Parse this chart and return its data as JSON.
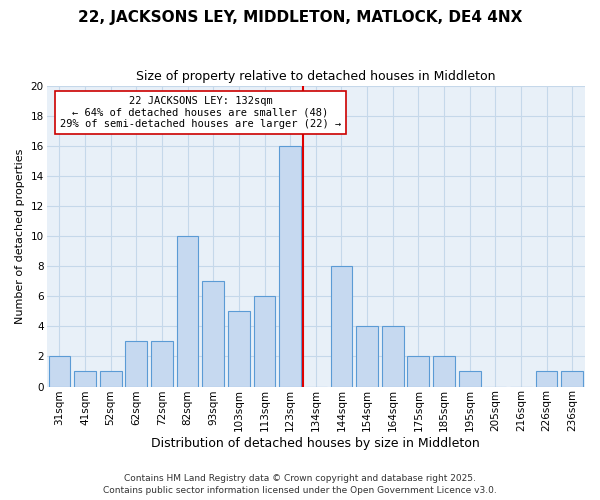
{
  "title": "22, JACKSONS LEY, MIDDLETON, MATLOCK, DE4 4NX",
  "subtitle": "Size of property relative to detached houses in Middleton",
  "xlabel": "Distribution of detached houses by size in Middleton",
  "ylabel": "Number of detached properties",
  "bar_labels": [
    "31sqm",
    "41sqm",
    "52sqm",
    "62sqm",
    "72sqm",
    "82sqm",
    "93sqm",
    "103sqm",
    "113sqm",
    "123sqm",
    "134sqm",
    "144sqm",
    "154sqm",
    "164sqm",
    "175sqm",
    "185sqm",
    "195sqm",
    "205sqm",
    "216sqm",
    "226sqm",
    "236sqm"
  ],
  "bar_values": [
    2,
    1,
    1,
    3,
    3,
    10,
    7,
    5,
    6,
    16,
    0,
    8,
    4,
    4,
    2,
    2,
    1,
    0,
    0,
    1,
    1
  ],
  "bar_color": "#c6d9f0",
  "bar_edgecolor": "#5b9bd5",
  "vline_color": "#dd0000",
  "annotation_title": "22 JACKSONS LEY: 132sqm",
  "annotation_line1": "← 64% of detached houses are smaller (48)",
  "annotation_line2": "29% of semi-detached houses are larger (22) →",
  "annotation_box_edgecolor": "#cc0000",
  "annotation_box_facecolor": "#ffffff",
  "ylim": [
    0,
    20
  ],
  "yticks": [
    0,
    2,
    4,
    6,
    8,
    10,
    12,
    14,
    16,
    18,
    20
  ],
  "background_color": "#ffffff",
  "plot_bg_color": "#e8f0f8",
  "grid_color": "#c5d8ea",
  "footer_line1": "Contains HM Land Registry data © Crown copyright and database right 2025.",
  "footer_line2": "Contains public sector information licensed under the Open Government Licence v3.0.",
  "title_fontsize": 11,
  "subtitle_fontsize": 9,
  "xlabel_fontsize": 9,
  "ylabel_fontsize": 8,
  "tick_fontsize": 7.5,
  "annotation_fontsize": 7.5,
  "footer_fontsize": 6.5
}
